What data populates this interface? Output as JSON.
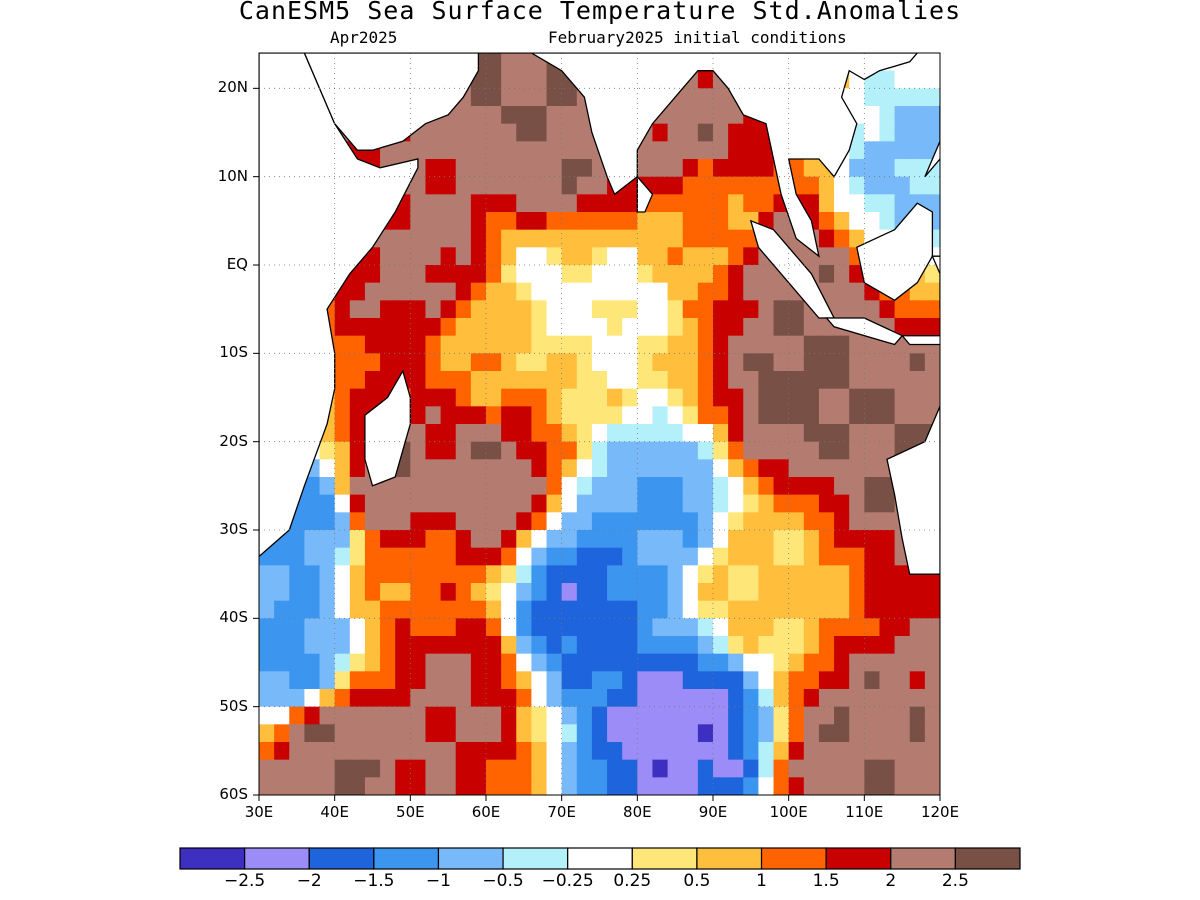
{
  "title": "CanESM5 Sea Surface Temperature Std.Anomalies",
  "subtitle_left": "Apr2025",
  "subtitle_right": "February2025 initial conditions",
  "map": {
    "lat_range": [
      -60,
      24
    ],
    "lon_range": [
      30,
      120
    ],
    "lat_labels": [
      "20N",
      "10N",
      "EQ",
      "10S",
      "20S",
      "30S",
      "40S",
      "50S",
      "60S"
    ],
    "lat_values": [
      20,
      10,
      0,
      -10,
      -20,
      -30,
      -40,
      -50,
      -60
    ],
    "lon_labels": [
      "30E",
      "40E",
      "50E",
      "60E",
      "70E",
      "80E",
      "90E",
      "100E",
      "110E",
      "120E"
    ],
    "lon_values": [
      30,
      40,
      50,
      60,
      70,
      80,
      90,
      100,
      110,
      120
    ],
    "grid": "dotted"
  },
  "colorbar": {
    "colors": [
      "#3d2fbf",
      "#9c8cf7",
      "#1e64dc",
      "#3c96f0",
      "#78b9fa",
      "#b4f0fa",
      "#ffffff",
      "#ffe678",
      "#ffbe3c",
      "#ff6400",
      "#c80000",
      "#b47c70",
      "#785046"
    ],
    "labels": [
      "−2.5",
      "−2",
      "−1.5",
      "−1",
      "−0.5",
      "−0.25",
      "0.25",
      "0.5",
      "1",
      "1.5",
      "2",
      "2.5"
    ]
  },
  "chart_data": {
    "type": "heatmap",
    "title": "CanESM5 Sea Surface Temperature Std.Anomalies",
    "subtitle": [
      "Apr2025",
      "February2025 initial conditions"
    ],
    "x_range": [
      30,
      120
    ],
    "y_range": [
      -60,
      24
    ],
    "color_levels": [
      -2.5,
      -2,
      -1.5,
      -1,
      -0.5,
      -0.25,
      0.25,
      0.5,
      1,
      1.5,
      2,
      2.5
    ],
    "features": [
      {
        "lon": 53,
        "lat": 1,
        "value": 2.2
      },
      {
        "lon": 70,
        "lat": 12,
        "value": 2.4
      },
      {
        "lon": 87,
        "lat": 17,
        "value": 2.3
      },
      {
        "lon": 100,
        "lat": -2,
        "value": 2.4
      },
      {
        "lon": 101,
        "lat": -14,
        "value": 2.6
      },
      {
        "lon": 115,
        "lat": -20,
        "value": 2.5
      },
      {
        "lon": 47,
        "lat": -26,
        "value": 2.5
      },
      {
        "lon": 60,
        "lat": -25,
        "value": 2.4
      },
      {
        "lon": 72,
        "lat": -38,
        "value": -1.8
      },
      {
        "lon": 86,
        "lat": -52,
        "value": -2.3
      },
      {
        "lon": 35,
        "lat": -44,
        "value": -1.2
      },
      {
        "lon": 37,
        "lat": -29,
        "value": -1.2
      },
      {
        "lon": 83,
        "lat": -28,
        "value": -1.1
      },
      {
        "lon": 68,
        "lat": -3,
        "value": 0.1
      },
      {
        "lon": 78,
        "lat": -5,
        "value": 0.15
      },
      {
        "lon": 40,
        "lat": -55,
        "value": 2.5
      },
      {
        "lon": 110,
        "lat": -55,
        "value": 2.4
      },
      {
        "lon": 55,
        "lat": -48,
        "value": 2.1
      },
      {
        "lon": 115,
        "lat": 10,
        "value": -0.6
      },
      {
        "lon": 50,
        "lat": -35,
        "value": 1.2
      },
      {
        "lon": 95,
        "lat": -36,
        "value": 0.6
      },
      {
        "lon": 62,
        "lat": -8,
        "value": 0.8
      },
      {
        "lon": 90,
        "lat": 4,
        "value": 1.0
      },
      {
        "lon": 65,
        "lat": 20,
        "value": 2.5
      }
    ]
  }
}
